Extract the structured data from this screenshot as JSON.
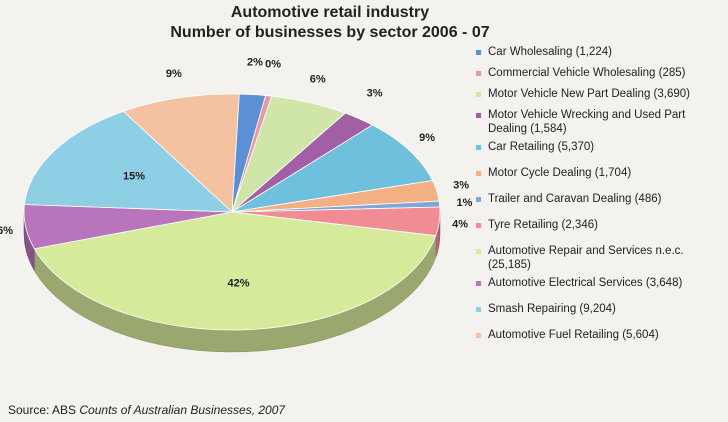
{
  "chart_data": {
    "type": "pie",
    "title": "Automotive retail industry",
    "subtitle": "Number of businesses by sector 2006 - 07",
    "slices": [
      {
        "name": "Car Wholesaling (1,224)",
        "value": 1224,
        "pct_label": "2%",
        "color": "#5b8fd6"
      },
      {
        "name": "Commercial Vehicle Wholesaling (285)",
        "value": 285,
        "pct_label": "0%",
        "color": "#e79aa6"
      },
      {
        "name": "Motor Vehicle New Part Dealing (3,690)",
        "value": 3690,
        "pct_label": "6%",
        "color": "#cfe6a8"
      },
      {
        "name": "Motor Vehicle Wrecking and Used Part Dealing (1,584)",
        "value": 1584,
        "pct_label": "3%",
        "color": "#a35fa6"
      },
      {
        "name": "Car Retailing (5,370)",
        "value": 5370,
        "pct_label": "9%",
        "color": "#6fc0dc"
      },
      {
        "name": "Motor Cycle Dealing (1,704)",
        "value": 1704,
        "pct_label": "3%",
        "color": "#f2b083"
      },
      {
        "name": "Trailer and Caravan Dealing (486)",
        "value": 486,
        "pct_label": "1%",
        "color": "#7fa6d9"
      },
      {
        "name": "Tyre Retailing (2,346)",
        "value": 2346,
        "pct_label": "4%",
        "color": "#f28c94"
      },
      {
        "name": "Automotive Repair and Services n.e.c. (25,185)",
        "value": 25185,
        "pct_label": "42%",
        "color": "#d6ea9c"
      },
      {
        "name": "Automotive Electrical Services (3,648)",
        "value": 3648,
        "pct_label": "6%",
        "color": "#b875bd"
      },
      {
        "name": "Smash Repairing (9,204)",
        "value": 9204,
        "pct_label": "15%",
        "color": "#8fcfe6"
      },
      {
        "name": "Automotive Fuel Retailing (5,604)",
        "value": 5604,
        "pct_label": "9%",
        "color": "#f4c2a0"
      }
    ],
    "legend_position": "right"
  },
  "source": {
    "prefix": "Source: ABS ",
    "italic": "Counts of Australian Businesses, 2007"
  }
}
